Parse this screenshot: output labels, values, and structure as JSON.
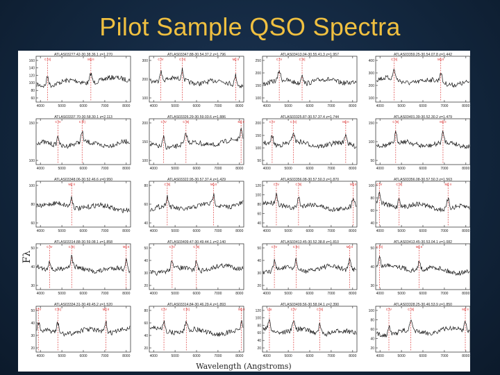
{
  "slide": {
    "title": "Pilot Sample QSO Spectra"
  },
  "figure": {
    "xlabel": "Wavelength (Angstroms)",
    "ylabel": "Fλ"
  },
  "colors": {
    "title": "#f0c040",
    "background": "#12263d",
    "spectrum": "#111111",
    "line_marker": "#d62020"
  },
  "chart_data": {
    "type": "line",
    "title": "Pilot Sample QSO Spectra",
    "xlabel": "Wavelength (Angstroms)",
    "ylabel": "Fλ",
    "layout_grid": "5 rows x 4 columns",
    "panels": [
      {
        "label": "ATLAS03277.42-30.38.36.1 z=1.270",
        "z": 1.27,
        "xlim": [
          3800,
          8200
        ],
        "xticks": [
          "4000",
          "5000",
          "6000",
          "7000",
          "8000"
        ],
        "yticks": [
          "60",
          "80",
          "100",
          "120",
          "140",
          "160"
        ],
        "lines": [
          "C IV",
          "C III]",
          "Mg II"
        ]
      },
      {
        "label": "ATLAS03347.88-30.54.37.2 z=1.796",
        "z": 1.796,
        "xlim": [
          3800,
          8200
        ],
        "xticks": [
          "4000",
          "5000",
          "6000",
          "7000",
          "8000"
        ],
        "yticks": [
          "100",
          "200",
          "300"
        ],
        "lines": [
          "C IV",
          "C III]",
          "Mg II"
        ]
      },
      {
        "label": "ATLAS03413.04-30.55.41.3 z=1.957",
        "z": 1.957,
        "xlim": [
          3800,
          8200
        ],
        "xticks": [
          "4000",
          "5000",
          "6000",
          "7000",
          "8000"
        ],
        "yticks": [
          "100",
          "150",
          "200",
          "250"
        ],
        "lines": [
          "C IV",
          "C III]",
          "Mg II"
        ]
      },
      {
        "label": "ATLAS03359.25-30.54.07.8 z=1.442",
        "z": 1.442,
        "xlim": [
          3800,
          8200
        ],
        "xticks": [
          "4000",
          "5000",
          "6000",
          "7000",
          "8000"
        ],
        "yticks": [
          "100",
          "200",
          "300",
          "400"
        ],
        "lines": [
          "C IV",
          "C III]",
          "Mg II"
        ]
      },
      {
        "label": "ATLAS03337.70-30.58.30.1 z=2.113",
        "z": 2.113,
        "xlim": [
          3800,
          8200
        ],
        "xticks": [
          "4000",
          "5000",
          "6000",
          "7000",
          "8000"
        ],
        "yticks": [
          "100",
          "150"
        ],
        "lines": [
          "Lyα",
          "C IV",
          "C III]",
          "Mg II"
        ]
      },
      {
        "label": "ATLAS03326.29-30.59.03.6 z=1.886",
        "z": 1.886,
        "xlim": [
          3800,
          8200
        ],
        "xticks": [
          "4000",
          "5000",
          "6000",
          "7000",
          "8000"
        ],
        "yticks": [
          "100",
          "150",
          "200"
        ],
        "lines": [
          "C IV",
          "C III]",
          "Mg II"
        ]
      },
      {
        "label": "ATLAS03325.87-30.57.37.4 z=1.744",
        "z": 1.744,
        "xlim": [
          3800,
          8200
        ],
        "xticks": [
          "4000",
          "5000",
          "6000",
          "7000",
          "8000"
        ],
        "yticks": [
          "50",
          "100",
          "150",
          "200"
        ],
        "lines": [
          "C IV",
          "C III]",
          "Mg II"
        ]
      },
      {
        "label": "ATLAS03401.39-30.52.30.2 z=1.479",
        "z": 1.479,
        "xlim": [
          3800,
          8200
        ],
        "xticks": [
          "4000",
          "5000",
          "6000",
          "7000",
          "8000"
        ],
        "yticks": [
          "50",
          "100",
          "150"
        ],
        "lines": [
          "C IV",
          "C III]",
          "Mg II"
        ]
      },
      {
        "label": "ATLAS03348.06-30.52.46.6 z=0.950",
        "z": 0.95,
        "xlim": [
          3800,
          8200
        ],
        "xticks": [
          "4000",
          "5000",
          "6000",
          "7000",
          "8000"
        ],
        "yticks": [
          "60",
          "80",
          "100"
        ],
        "lines": [
          "C III]",
          "Mg II"
        ]
      },
      {
        "label": "ATLAS03322.95-30.57.37.4 z=1.429",
        "z": 1.429,
        "xlim": [
          3800,
          8200
        ],
        "xticks": [
          "4000",
          "5000",
          "6000",
          "7000",
          "8000"
        ],
        "yticks": [
          "40",
          "60",
          "80"
        ],
        "lines": [
          "C IV",
          "C III]",
          "Mg II"
        ]
      },
      {
        "label": "ATLAS03356.08-30.57.50.3 z=1.870",
        "z": 1.87,
        "xlim": [
          3800,
          8200
        ],
        "xticks": [
          "4000",
          "5000",
          "6000",
          "7000",
          "8000"
        ],
        "yticks": [
          "40",
          "60",
          "80",
          "100",
          "120"
        ],
        "lines": [
          "C IV",
          "C III]",
          "Mg II"
        ]
      },
      {
        "label": "ATLAS03356.08-30.57.50.3 z=1.563",
        "z": 1.563,
        "xlim": [
          3800,
          8200
        ],
        "xticks": [
          "4000",
          "5000",
          "6000",
          "7000",
          "8000"
        ],
        "yticks": [
          "40",
          "60",
          "80",
          "100"
        ],
        "lines": [
          "C IV",
          "C III]",
          "Mg II"
        ]
      },
      {
        "label": "ATLAS03314.88-30.59.08.1 z=1.858",
        "z": 1.858,
        "xlim": [
          3800,
          8200
        ],
        "xticks": [
          "4000",
          "5000",
          "6000",
          "7000",
          "8000"
        ],
        "yticks": [
          "30",
          "40",
          "50"
        ],
        "lines": [
          "C IV",
          "C III]",
          "Mg II"
        ]
      },
      {
        "label": "ATLAS03409.47-30.49.44.1 z=2.140",
        "z": 2.14,
        "xlim": [
          3800,
          8200
        ],
        "xticks": [
          "4000",
          "5000",
          "6000",
          "7000",
          "8000"
        ],
        "yticks": [
          "20",
          "30",
          "40",
          "50"
        ],
        "lines": [
          "Lyα",
          "C IV",
          "C III]",
          "Mg II"
        ]
      },
      {
        "label": "ATLAS03413.45-30.52.38.8 z=1.810",
        "z": 1.81,
        "xlim": [
          3800,
          8200
        ],
        "xticks": [
          "4000",
          "5000",
          "6000",
          "7000",
          "8000"
        ],
        "yticks": [
          "20",
          "30",
          "40",
          "50"
        ],
        "lines": [
          "C IV",
          "C III]",
          "Mg II"
        ]
      },
      {
        "label": "ATLAS03413.45-30.53.04.1 z=1.082",
        "z": 1.082,
        "xlim": [
          3800,
          8200
        ],
        "xticks": [
          "4000",
          "5000",
          "6000",
          "7000",
          "8000"
        ],
        "yticks": [
          "30",
          "40",
          "50"
        ],
        "lines": [
          "C III]",
          "Mg II"
        ]
      },
      {
        "label": "ATLAS03334.31-30.49.45.2 z=1.520",
        "z": 1.52,
        "xlim": [
          3800,
          8200
        ],
        "xticks": [
          "4000",
          "5000",
          "6000",
          "7000",
          "8000"
        ],
        "yticks": [
          "20",
          "30",
          "40",
          "50"
        ],
        "lines": [
          "C IV",
          "C III]",
          "Mg II"
        ]
      },
      {
        "label": "ATLAS03314.84-30.46.29.4 z=1.893",
        "z": 1.893,
        "xlim": [
          3800,
          8200
        ],
        "xticks": [
          "4000",
          "5000",
          "6000",
          "7000",
          "8000"
        ],
        "yticks": [
          "20",
          "40",
          "60",
          "80"
        ],
        "lines": [
          "C IV",
          "C III]",
          "Mg II"
        ]
      },
      {
        "label": "ATLAS03409.56-30.58.04.1 z=2.390",
        "z": 2.39,
        "xlim": [
          3800,
          8200
        ],
        "xticks": [
          "4000",
          "5000",
          "6000",
          "7000",
          "8000"
        ],
        "yticks": [
          "20",
          "40",
          "60",
          "80",
          "100",
          "120"
        ],
        "lines": [
          "Lyα",
          "C IV",
          "C III]",
          "Mg II"
        ]
      },
      {
        "label": "ATLAS03328.25-30.46.53.9 z=1.850",
        "z": 1.85,
        "xlim": [
          3800,
          8200
        ],
        "xticks": [
          "4000",
          "5000",
          "6000",
          "7000",
          "8000"
        ],
        "yticks": [
          "20",
          "40",
          "60",
          "80",
          "100"
        ],
        "lines": [
          "C IV",
          "C III]",
          "Mg II"
        ]
      }
    ]
  }
}
